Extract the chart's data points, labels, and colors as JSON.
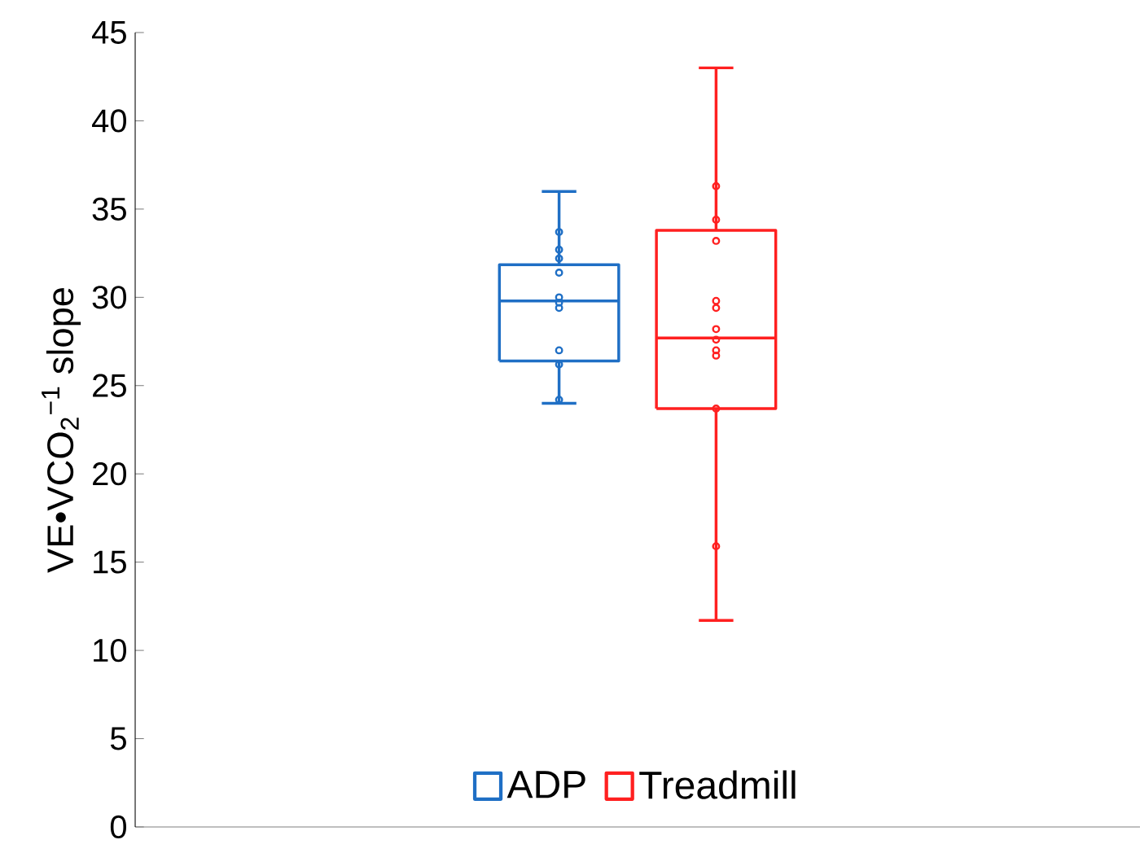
{
  "chart_data": {
    "type": "box",
    "ylabel": "VE•VCO$_{2}$$^{−1}$ slope",
    "categories": [
      null,
      null
    ],
    "series": [
      {
        "name": "ADP",
        "color": "#1f6fc5",
        "boxes": [
          {
            "low": 24.0,
            "q1": 26.4,
            "median": 29.8,
            "q3": 31.85,
            "high": 36.0
          },
          null
        ]
      },
      {
        "name": "Treadmill",
        "color": "#ff2020",
        "boxes": [
          null,
          {
            "low": 11.7,
            "q1": 23.7,
            "median": 27.7,
            "q3": 33.8,
            "high": 43.0
          }
        ]
      },
      {
        "type": "scatter",
        "colors": [
          "#1f6fc5",
          "#ff2020"
        ],
        "values": [
          33.7,
          36.3
        ]
      },
      {
        "type": "scatter",
        "colors": [
          "#1f6fc5",
          "#ff2020"
        ],
        "values": [
          32.7,
          34.4
        ]
      },
      {
        "type": "scatter",
        "colors": [
          "#1f6fc5",
          "#ff2020"
        ],
        "values": [
          32.2,
          33.2
        ]
      },
      {
        "type": "scatter",
        "colors": [
          "#1f6fc5",
          "#ff2020"
        ],
        "values": [
          31.4,
          29.8
        ]
      },
      {
        "type": "scatter",
        "colors": [
          "#1f6fc5",
          "#ff2020"
        ],
        "values": [
          30.0,
          29.4
        ]
      },
      {
        "type": "scatter",
        "colors": [
          "#1f6fc5",
          "#ff2020"
        ],
        "values": [
          29.7,
          28.2
        ]
      },
      {
        "type": "scatter",
        "colors": [
          "#1f6fc5",
          "#ff2020"
        ],
        "values": [
          29.4,
          27.6
        ]
      },
      {
        "type": "scatter",
        "colors": [
          "#1f6fc5",
          "#ff2020"
        ],
        "values": [
          27.0,
          27.0
        ]
      },
      {
        "type": "scatter",
        "colors": [
          "#1f6fc5",
          "#ff2020"
        ],
        "values": [
          26.2,
          26.7
        ]
      },
      {
        "type": "scatter",
        "colors": [
          "#1f6fc5",
          "#ff2020"
        ],
        "values": [
          24.2,
          23.7
        ]
      },
      {
        "type": "scatter",
        "colors": [
          "#1f6fc5",
          "#ff2020"
        ],
        "values": [
          null,
          15.9
        ]
      }
    ],
    "ylim": [
      0,
      45
    ],
    "yticks": [
      0,
      5,
      10,
      15,
      20,
      25,
      30,
      35,
      40,
      45
    ],
    "grid": false,
    "legend": "bottom",
    "marker": "circle"
  }
}
